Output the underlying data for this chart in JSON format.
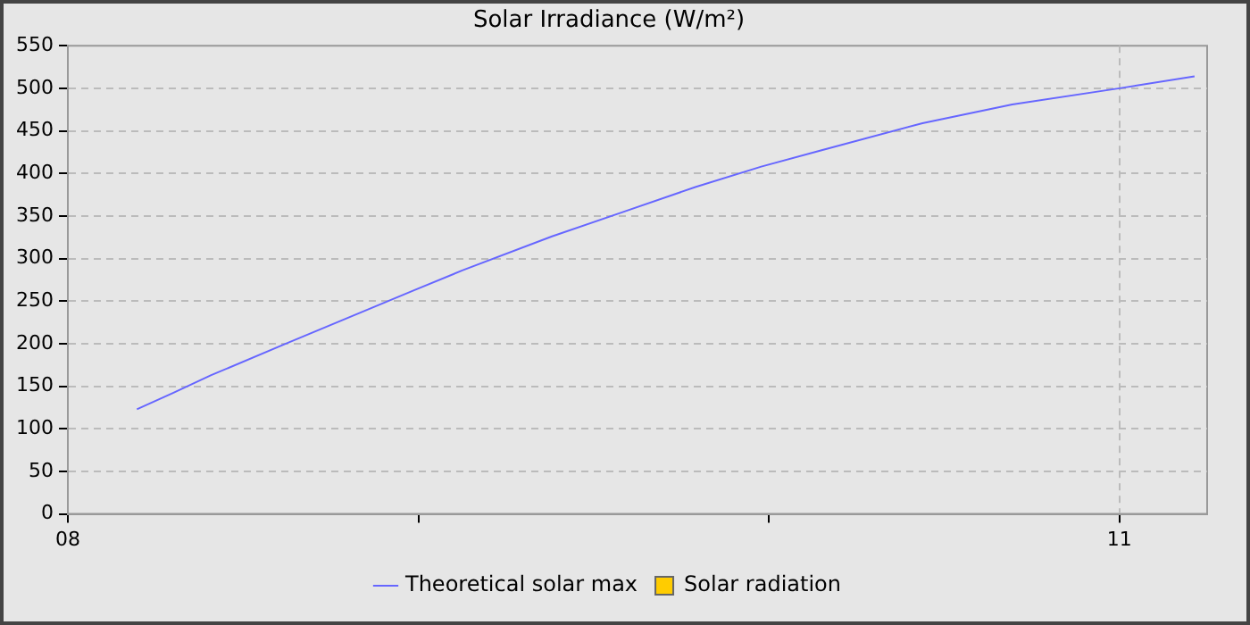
{
  "chart_data": {
    "type": "line",
    "title": "Solar Irradiance (W/m²)",
    "xlim": [
      8,
      11.25
    ],
    "xticks": [
      {
        "value": 8,
        "label": "08"
      },
      {
        "value": 9,
        "label": null
      },
      {
        "value": 10,
        "label": null
      },
      {
        "value": 11,
        "label": "11"
      }
    ],
    "ylim": [
      0,
      550
    ],
    "yticks": [
      0,
      50,
      100,
      150,
      200,
      250,
      300,
      350,
      400,
      450,
      500,
      550
    ],
    "grid": true,
    "legend": "bottom",
    "marker": "none",
    "line_style": "solid",
    "series": [
      {
        "name": "Theoretical solar max",
        "color": "#6666ff",
        "x": [
          8.197,
          8.3,
          8.409,
          8.622,
          8.989,
          9.125,
          9.381,
          9.586,
          9.79,
          9.978,
          10.148,
          10.438,
          10.694,
          11.0,
          11.214
        ],
        "values": [
          123,
          142,
          163,
          200,
          263,
          286,
          326,
          355,
          384,
          408,
          427,
          459,
          481,
          500,
          514
        ]
      },
      {
        "name": "Solar radiation",
        "type": "scatter",
        "marker": "square",
        "color": "#ffcc00"
      }
    ]
  }
}
